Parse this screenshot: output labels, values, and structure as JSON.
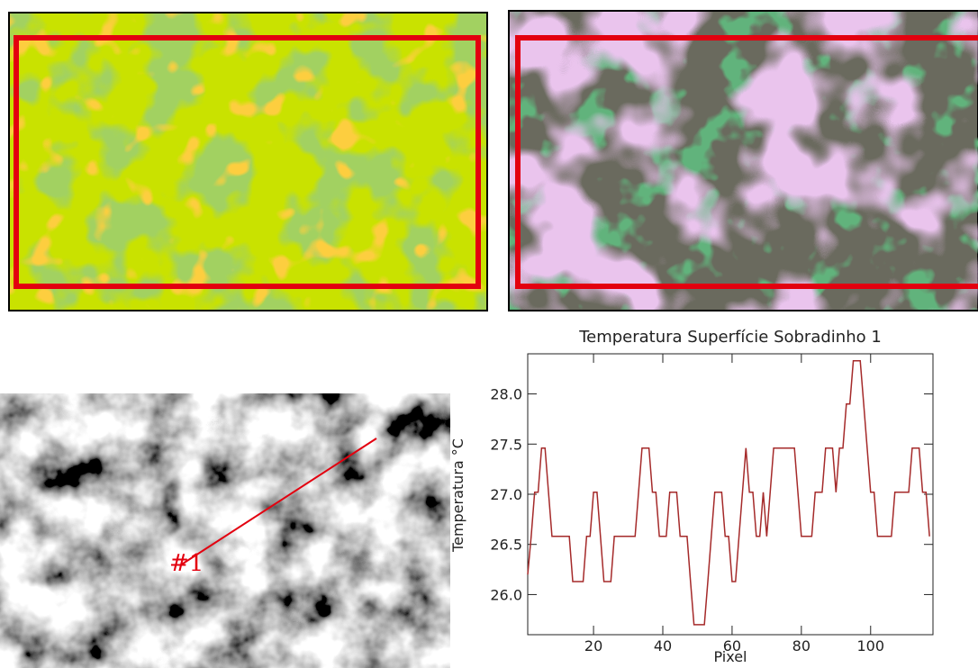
{
  "chart_data": {
    "type": "line",
    "title": "Temperatura Superfície Sobradinho 1",
    "x_label": "Pixel",
    "y_label": "Temperatura °C",
    "x": [
      1,
      2,
      3,
      4,
      5,
      6,
      7,
      8,
      9,
      10,
      11,
      12,
      13,
      14,
      15,
      16,
      17,
      18,
      19,
      20,
      21,
      22,
      23,
      24,
      25,
      26,
      27,
      28,
      29,
      30,
      31,
      32,
      33,
      34,
      35,
      36,
      37,
      38,
      39,
      40,
      41,
      42,
      43,
      44,
      45,
      46,
      47,
      48,
      49,
      50,
      51,
      52,
      53,
      54,
      55,
      56,
      57,
      58,
      59,
      60,
      61,
      62,
      63,
      64,
      65,
      66,
      67,
      68,
      69,
      70,
      71,
      72,
      73,
      74,
      75,
      76,
      77,
      78,
      79,
      80,
      81,
      82,
      83,
      84,
      85,
      86,
      87,
      88,
      89,
      90,
      91,
      92,
      93,
      94,
      95,
      96,
      97,
      98,
      99,
      100,
      101,
      102,
      103,
      104,
      105,
      106,
      107,
      108,
      109,
      110,
      111,
      112,
      113,
      114,
      115,
      116,
      117
    ],
    "series": [
      {
        "color": "#a52a2a",
        "values": [
          26.2,
          26.58,
          27.02,
          27.02,
          27.46,
          27.46,
          27.02,
          26.58,
          26.58,
          26.58,
          26.58,
          26.58,
          26.58,
          26.13,
          26.13,
          26.13,
          26.13,
          26.58,
          26.58,
          27.02,
          27.02,
          26.58,
          26.13,
          26.13,
          26.13,
          26.58,
          26.58,
          26.58,
          26.58,
          26.58,
          26.58,
          26.58,
          27.02,
          27.46,
          27.46,
          27.46,
          27.02,
          27.02,
          26.58,
          26.58,
          26.58,
          27.02,
          27.02,
          27.02,
          26.58,
          26.58,
          26.58,
          26.13,
          25.7,
          25.7,
          25.7,
          25.7,
          26.13,
          26.58,
          27.02,
          27.02,
          27.02,
          26.58,
          26.58,
          26.13,
          26.13,
          26.58,
          27.02,
          27.46,
          27.02,
          27.02,
          26.58,
          26.58,
          27.02,
          26.58,
          27.02,
          27.46,
          27.46,
          27.46,
          27.46,
          27.46,
          27.46,
          27.46,
          27.02,
          26.58,
          26.58,
          26.58,
          26.58,
          27.02,
          27.02,
          27.02,
          27.46,
          27.46,
          27.46,
          27.02,
          27.46,
          27.46,
          27.9,
          27.9,
          28.33,
          28.33,
          28.33,
          27.9,
          27.46,
          27.02,
          27.02,
          26.58,
          26.58,
          26.58,
          26.58,
          26.58,
          27.02,
          27.02,
          27.02,
          27.02,
          27.02,
          27.46,
          27.46,
          27.46,
          27.02,
          27.02,
          26.58
        ]
      }
    ],
    "xlim": [
      1,
      118
    ],
    "ylim": [
      25.6,
      28.4
    ],
    "xticks": [
      20,
      40,
      60,
      80,
      100
    ],
    "yticks": [
      {
        "value": 26,
        "label": "26.0"
      },
      {
        "value": 26.5,
        "label": "26.5"
      },
      {
        "value": 27,
        "label": "27.0"
      },
      {
        "value": 27.5,
        "label": "27.5"
      },
      {
        "value": 28,
        "label": "28.0"
      }
    ]
  },
  "profile_marker": "#1"
}
